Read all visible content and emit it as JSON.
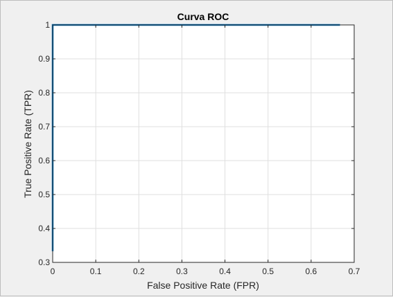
{
  "chart_data": {
    "type": "line",
    "title": "Curva ROC",
    "xlabel": "False Positive Rate (FPR)",
    "ylabel": "True Positive Rate (TPR)",
    "xlim": [
      0,
      0.7
    ],
    "ylim": [
      0.3,
      1
    ],
    "xticks": [
      "0",
      "0.1",
      "0.2",
      "0.3",
      "0.4",
      "0.5",
      "0.6",
      "0.7"
    ],
    "yticks": [
      "0.3",
      "0.4",
      "0.5",
      "0.6",
      "0.7",
      "0.8",
      "0.9",
      "1"
    ],
    "grid": true,
    "series": [
      {
        "color": "#0072bd",
        "x": [
          0,
          0,
          0.667
        ],
        "y": [
          0.333,
          1,
          1
        ]
      }
    ]
  }
}
